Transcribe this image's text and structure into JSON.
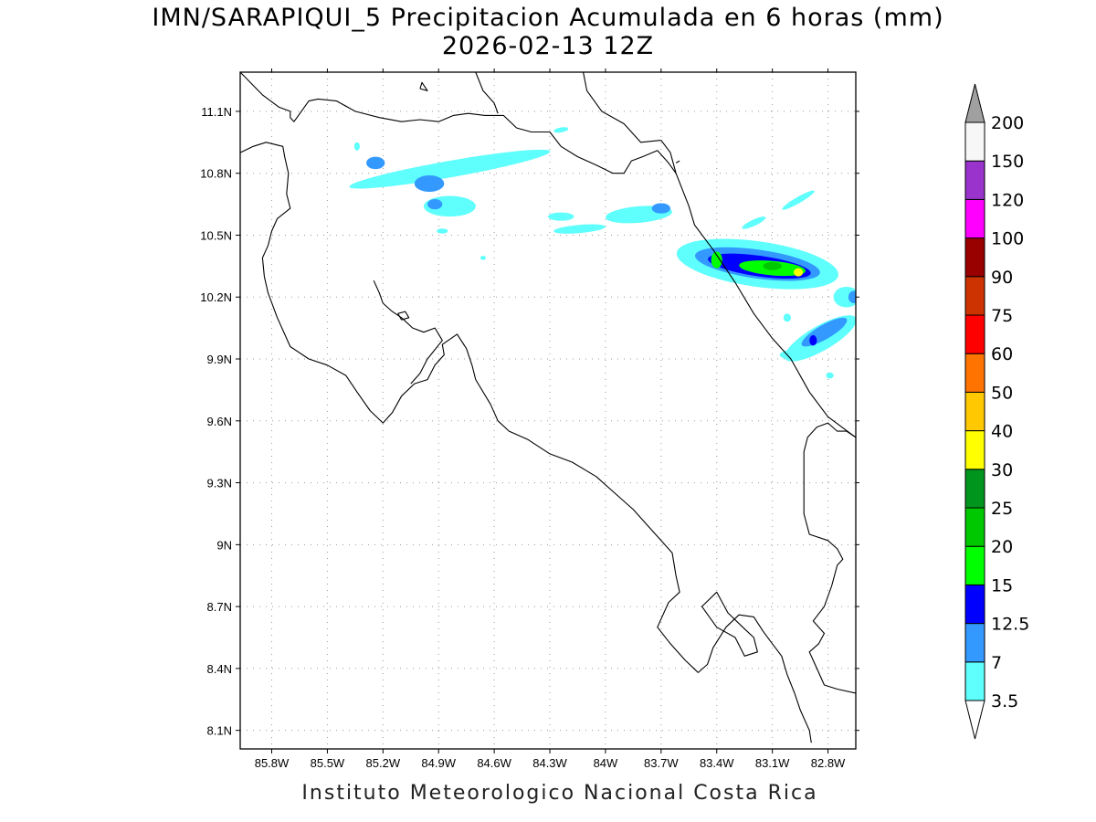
{
  "title": {
    "line1": "IMN/SARAPIQUI_5 Precipitacion Acumulada en 6 horas (mm)",
    "line2": "2026-02-13 12Z"
  },
  "footer": "Instituto Meteorologico Nacional Costa Rica",
  "map": {
    "lon_range": [
      -85.97,
      -82.65
    ],
    "lat_range": [
      8.01,
      11.29
    ],
    "lon_ticks": [
      -85.8,
      -85.5,
      -85.2,
      -84.9,
      -84.6,
      -84.3,
      -84.0,
      -83.7,
      -83.4,
      -83.1,
      -82.8
    ],
    "lon_tick_labels": [
      "85.8W",
      "85.5W",
      "85.2W",
      "84.9W",
      "84.6W",
      "84.3W",
      "84W",
      "83.7W",
      "83.4W",
      "83.1W",
      "82.8W"
    ],
    "lat_ticks": [
      8.1,
      8.4,
      8.7,
      9.0,
      9.3,
      9.6,
      9.9,
      10.2,
      10.5,
      10.8,
      11.1
    ],
    "lat_tick_labels": [
      "8.1N",
      "8.4N",
      "8.7N",
      "9N",
      "9.3N",
      "9.6N",
      "9.9N",
      "10.2N",
      "10.5N",
      "10.8N",
      "11.1N"
    ],
    "grid": "dotted",
    "precip_areas": [
      {
        "lon": -84.84,
        "lat": 10.82,
        "rlon": 0.55,
        "rlat": 0.04,
        "rot": -10,
        "mm": 3.5
      },
      {
        "lon": -84.84,
        "lat": 10.64,
        "rlon": 0.14,
        "rlat": 0.05,
        "rot": 0,
        "mm": 3.5
      },
      {
        "lon": -84.95,
        "lat": 10.75,
        "rlon": 0.08,
        "rlat": 0.04,
        "rot": 0,
        "mm": 7
      },
      {
        "lon": -84.92,
        "lat": 10.65,
        "rlon": 0.04,
        "rlat": 0.025,
        "rot": 0,
        "mm": 7
      },
      {
        "lon": -85.24,
        "lat": 10.85,
        "rlon": 0.05,
        "rlat": 0.03,
        "rot": 0,
        "mm": 7
      },
      {
        "lon": -85.34,
        "lat": 10.93,
        "rlon": 0.015,
        "rlat": 0.02,
        "rot": 0,
        "mm": 3.5
      },
      {
        "lon": -84.24,
        "lat": 11.01,
        "rlon": 0.04,
        "rlat": 0.012,
        "rot": -10,
        "mm": 3.5
      },
      {
        "lon": -84.88,
        "lat": 10.52,
        "rlon": 0.03,
        "rlat": 0.012,
        "rot": 0,
        "mm": 3.5
      },
      {
        "lon": -84.66,
        "lat": 10.39,
        "rlon": 0.015,
        "rlat": 0.01,
        "rot": 0,
        "mm": 3.5
      },
      {
        "lon": -83.82,
        "lat": 10.6,
        "rlon": 0.18,
        "rlat": 0.04,
        "rot": -5,
        "mm": 3.5
      },
      {
        "lon": -84.14,
        "lat": 10.53,
        "rlon": 0.14,
        "rlat": 0.02,
        "rot": -5,
        "mm": 3.5
      },
      {
        "lon": -84.24,
        "lat": 10.59,
        "rlon": 0.07,
        "rlat": 0.02,
        "rot": 0,
        "mm": 3.5
      },
      {
        "lon": -83.7,
        "lat": 10.63,
        "rlon": 0.05,
        "rlat": 0.025,
        "rot": 0,
        "mm": 7
      },
      {
        "lon": -83.18,
        "lat": 10.36,
        "rlon": 0.44,
        "rlat": 0.11,
        "rot": 8,
        "mm": 3.5
      },
      {
        "lon": -83.18,
        "lat": 10.36,
        "rlon": 0.34,
        "rlat": 0.07,
        "rot": 8,
        "mm": 7
      },
      {
        "lon": -83.17,
        "lat": 10.35,
        "rlon": 0.28,
        "rlat": 0.05,
        "rot": 8,
        "mm": 12.5
      },
      {
        "lon": -83.1,
        "lat": 10.34,
        "rlon": 0.18,
        "rlat": 0.035,
        "rot": 5,
        "mm": 15
      },
      {
        "lon": -83.4,
        "lat": 10.38,
        "rlon": 0.03,
        "rlat": 0.04,
        "rot": 0,
        "mm": 15
      },
      {
        "lon": -82.96,
        "lat": 10.32,
        "rlon": 0.025,
        "rlat": 0.02,
        "rot": 0,
        "mm": 30
      },
      {
        "lon": -83.1,
        "lat": 10.35,
        "rlon": 0.05,
        "rlat": 0.02,
        "rot": 0,
        "mm": 20
      },
      {
        "lon": -83.2,
        "lat": 10.56,
        "rlon": 0.07,
        "rlat": 0.015,
        "rot": -25,
        "mm": 3.5
      },
      {
        "lon": -82.96,
        "lat": 10.67,
        "rlon": 0.1,
        "rlat": 0.015,
        "rot": -30,
        "mm": 3.5
      },
      {
        "lon": -82.84,
        "lat": 10.0,
        "rlon": 0.22,
        "rlat": 0.06,
        "rot": -30,
        "mm": 3.5
      },
      {
        "lon": -82.82,
        "lat": 10.03,
        "rlon": 0.14,
        "rlat": 0.035,
        "rot": -30,
        "mm": 7
      },
      {
        "lon": -82.88,
        "lat": 9.99,
        "rlon": 0.02,
        "rlat": 0.025,
        "rot": 0,
        "mm": 12.5
      },
      {
        "lon": -82.98,
        "lat": 9.92,
        "rlon": 0.08,
        "rlat": 0.025,
        "rot": 0,
        "mm": 3.5
      },
      {
        "lon": -82.7,
        "lat": 10.2,
        "rlon": 0.07,
        "rlat": 0.05,
        "rot": 0,
        "mm": 3.5
      },
      {
        "lon": -82.66,
        "lat": 10.2,
        "rlon": 0.03,
        "rlat": 0.03,
        "rot": 0,
        "mm": 7
      },
      {
        "lon": -82.79,
        "lat": 9.82,
        "rlon": 0.02,
        "rlat": 0.015,
        "rot": 0,
        "mm": 3.5
      },
      {
        "lon": -83.02,
        "lat": 10.1,
        "rlon": 0.02,
        "rlat": 0.02,
        "rot": 0,
        "mm": 3.5
      }
    ],
    "coastlines": [
      [
        [
          -85.97,
          10.9
        ],
        [
          -85.9,
          10.93
        ],
        [
          -85.83,
          10.95
        ],
        [
          -85.74,
          10.93
        ],
        [
          -85.73,
          10.88
        ],
        [
          -85.71,
          10.8
        ],
        [
          -85.72,
          10.7
        ],
        [
          -85.7,
          10.63
        ],
        [
          -85.77,
          10.58
        ],
        [
          -85.8,
          10.52
        ],
        [
          -85.82,
          10.45
        ],
        [
          -85.85,
          10.39
        ],
        [
          -85.84,
          10.3
        ],
        [
          -85.82,
          10.22
        ],
        [
          -85.77,
          10.1
        ],
        [
          -85.7,
          9.96
        ],
        [
          -85.6,
          9.9
        ],
        [
          -85.5,
          9.87
        ],
        [
          -85.4,
          9.82
        ],
        [
          -85.34,
          9.74
        ],
        [
          -85.27,
          9.65
        ],
        [
          -85.2,
          9.59
        ],
        [
          -85.15,
          9.64
        ],
        [
          -85.1,
          9.72
        ],
        [
          -85.03,
          9.78
        ],
        [
          -84.96,
          9.8
        ],
        [
          -84.92,
          9.87
        ],
        [
          -84.87,
          9.92
        ],
        [
          -84.88,
          9.97
        ],
        [
          -84.8,
          10.02
        ],
        [
          -84.75,
          9.95
        ],
        [
          -84.72,
          9.87
        ],
        [
          -84.7,
          9.8
        ],
        [
          -84.62,
          9.68
        ],
        [
          -84.58,
          9.6
        ],
        [
          -84.52,
          9.55
        ],
        [
          -84.42,
          9.51
        ],
        [
          -84.3,
          9.44
        ],
        [
          -84.18,
          9.4
        ],
        [
          -84.05,
          9.33
        ],
        [
          -83.95,
          9.25
        ],
        [
          -83.85,
          9.17
        ],
        [
          -83.78,
          9.1
        ],
        [
          -83.7,
          9.02
        ],
        [
          -83.64,
          8.96
        ],
        [
          -83.62,
          8.85
        ],
        [
          -83.6,
          8.77
        ],
        [
          -83.66,
          8.72
        ],
        [
          -83.72,
          8.6
        ],
        [
          -83.65,
          8.52
        ],
        [
          -83.57,
          8.44
        ],
        [
          -83.5,
          8.38
        ],
        [
          -83.45,
          8.42
        ],
        [
          -83.42,
          8.5
        ],
        [
          -83.35,
          8.6
        ],
        [
          -83.28,
          8.66
        ],
        [
          -83.2,
          8.65
        ],
        [
          -83.15,
          8.58
        ],
        [
          -83.1,
          8.52
        ],
        [
          -83.05,
          8.46
        ],
        [
          -83.02,
          8.37
        ],
        [
          -82.98,
          8.28
        ],
        [
          -82.95,
          8.2
        ],
        [
          -82.9,
          8.1
        ],
        [
          -82.89,
          8.04
        ]
      ],
      [
        [
          -83.4,
          8.77
        ],
        [
          -83.34,
          8.67
        ],
        [
          -83.26,
          8.6
        ],
        [
          -83.2,
          8.55
        ],
        [
          -83.18,
          8.48
        ],
        [
          -83.25,
          8.46
        ],
        [
          -83.3,
          8.55
        ],
        [
          -83.4,
          8.6
        ],
        [
          -83.48,
          8.7
        ],
        [
          -83.4,
          8.77
        ]
      ],
      [
        [
          -85.2,
          10.17
        ],
        [
          -85.15,
          10.13
        ],
        [
          -85.1,
          10.1
        ],
        [
          -85.04,
          10.05
        ],
        [
          -84.98,
          10.03
        ],
        [
          -84.92,
          10.05
        ],
        [
          -84.88,
          9.99
        ],
        [
          -84.96,
          9.9
        ],
        [
          -85.0,
          9.83
        ],
        [
          -85.05,
          9.78
        ]
      ],
      [
        [
          -85.2,
          10.17
        ],
        [
          -85.22,
          10.22
        ],
        [
          -85.25,
          10.28
        ]
      ],
      [
        [
          -85.12,
          10.12
        ],
        [
          -85.1,
          10.09
        ],
        [
          -85.06,
          10.1
        ],
        [
          -85.08,
          10.13
        ],
        [
          -85.12,
          10.12
        ]
      ],
      [
        [
          -85.0,
          11.21
        ],
        [
          -84.99,
          11.24
        ],
        [
          -84.96,
          11.2
        ],
        [
          -85.0,
          11.21
        ]
      ],
      [
        [
          -85.97,
          11.29
        ],
        [
          -85.85,
          11.18
        ],
        [
          -85.76,
          11.12
        ],
        [
          -85.7,
          11.1
        ],
        [
          -85.7,
          11.07
        ],
        [
          -85.68,
          11.05
        ],
        [
          -85.6,
          11.15
        ],
        [
          -85.55,
          11.16
        ],
        [
          -85.45,
          11.15
        ],
        [
          -85.35,
          11.1
        ],
        [
          -85.22,
          11.07
        ],
        [
          -85.1,
          11.05
        ],
        [
          -85.0,
          11.06
        ],
        [
          -84.9,
          11.05
        ],
        [
          -84.82,
          11.08
        ],
        [
          -84.74,
          11.09
        ],
        [
          -84.65,
          11.08
        ],
        [
          -84.55,
          11.08
        ],
        [
          -84.48,
          11.02
        ],
        [
          -84.4,
          11.0
        ],
        [
          -84.3,
          11.0
        ],
        [
          -84.24,
          10.93
        ],
        [
          -84.15,
          10.88
        ],
        [
          -84.05,
          10.84
        ],
        [
          -83.96,
          10.8
        ],
        [
          -83.9,
          10.8
        ],
        [
          -83.86,
          10.86
        ],
        [
          -83.8,
          10.88
        ],
        [
          -83.72,
          10.91
        ],
        [
          -83.66,
          10.85
        ],
        [
          -83.62,
          10.8
        ]
      ],
      [
        [
          -84.7,
          11.29
        ],
        [
          -84.66,
          11.2
        ],
        [
          -84.6,
          11.14
        ],
        [
          -84.58,
          11.09
        ]
      ],
      [
        [
          -84.12,
          11.29
        ],
        [
          -84.1,
          11.2
        ],
        [
          -84.02,
          11.1
        ],
        [
          -83.9,
          11.04
        ],
        [
          -83.81,
          10.95
        ],
        [
          -83.7,
          10.96
        ]
      ],
      [
        [
          -83.7,
          10.96
        ],
        [
          -83.65,
          10.9
        ],
        [
          -83.62,
          10.8
        ],
        [
          -83.55,
          10.64
        ],
        [
          -83.52,
          10.55
        ],
        [
          -83.42,
          10.43
        ],
        [
          -83.3,
          10.27
        ],
        [
          -83.2,
          10.12
        ],
        [
          -83.1,
          10.0
        ],
        [
          -83.0,
          9.9
        ],
        [
          -82.9,
          9.74
        ],
        [
          -82.8,
          9.62
        ],
        [
          -82.65,
          9.52
        ]
      ],
      [
        [
          -83.62,
          10.85
        ],
        [
          -83.6,
          10.86
        ]
      ],
      [
        [
          -82.65,
          8.28
        ],
        [
          -82.75,
          8.3
        ],
        [
          -82.82,
          8.32
        ],
        [
          -82.86,
          8.4
        ],
        [
          -82.9,
          8.48
        ],
        [
          -82.85,
          8.52
        ],
        [
          -82.82,
          8.57
        ],
        [
          -82.88,
          8.63
        ],
        [
          -82.82,
          8.7
        ],
        [
          -82.78,
          8.8
        ],
        [
          -82.75,
          8.9
        ],
        [
          -82.72,
          8.93
        ],
        [
          -82.75,
          8.98
        ],
        [
          -82.8,
          9.02
        ],
        [
          -82.9,
          9.05
        ],
        [
          -82.93,
          9.15
        ],
        [
          -82.93,
          9.3
        ],
        [
          -82.93,
          9.45
        ],
        [
          -82.91,
          9.52
        ],
        [
          -82.86,
          9.57
        ],
        [
          -82.8,
          9.59
        ],
        [
          -82.75,
          9.55
        ],
        [
          -82.7,
          9.55
        ],
        [
          -82.65,
          9.52
        ]
      ]
    ]
  },
  "colorbar": {
    "levels": [
      "3.5",
      "7",
      "12.5",
      "15",
      "20",
      "25",
      "30",
      "40",
      "50",
      "60",
      "75",
      "90",
      "100",
      "120",
      "150",
      "200"
    ],
    "colors": [
      "#5efffc",
      "#3399ff",
      "#0000ff",
      "#00ff00",
      "#00c800",
      "#00961e",
      "#ffff00",
      "#ffc800",
      "#ff7300",
      "#ff0000",
      "#cc3300",
      "#990000",
      "#ff00ff",
      "#9933cc",
      "#f7f7f7",
      "#a0a0a0"
    ],
    "units": "mm"
  }
}
